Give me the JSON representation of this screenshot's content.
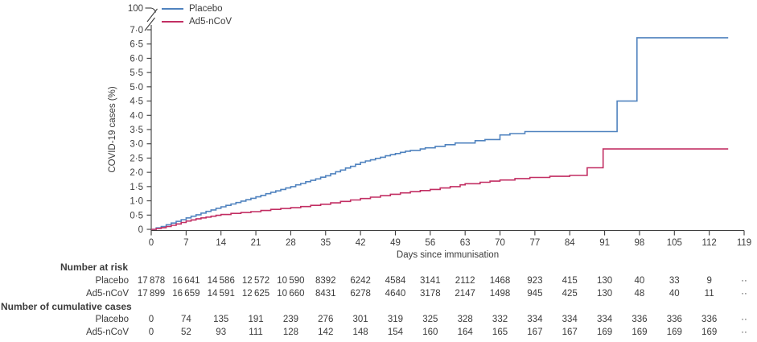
{
  "colors": {
    "placebo_blue": "#5083bf",
    "ad5_red": "#c22f63",
    "axis": "#3d3d3d",
    "text": "#3b3b3b"
  },
  "legend": {
    "items": [
      {
        "label": "Placebo"
      },
      {
        "label": "Ad5-nCoV"
      }
    ]
  },
  "chart_data": {
    "type": "line",
    "subtype": "kaplan-meier-cumulative-incidence-step",
    "title": "",
    "xlabel": "Days since immunisation",
    "ylabel": "COVID-19 cases (%)",
    "x_ticks": [
      0,
      7,
      14,
      21,
      28,
      35,
      42,
      49,
      56,
      63,
      70,
      77,
      84,
      91,
      98,
      105,
      112,
      119
    ],
    "y_tick_labels": [
      "0",
      "0·5",
      "1·0",
      "1·5",
      "2·0",
      "2·5",
      "3·0",
      "3·5",
      "4·0",
      "4·5",
      "5·0",
      "5·5",
      "6·0",
      "6·5",
      "7·0"
    ],
    "y_tick_values": [
      0,
      0.5,
      1,
      1.5,
      2,
      2.5,
      3,
      3.5,
      4,
      4.5,
      5,
      5.5,
      6,
      6.5,
      7
    ],
    "y_axis_break_top_label": "100",
    "xlim": [
      0,
      119
    ],
    "ylim": [
      0,
      7
    ],
    "grid": false,
    "legend_position": "top-left",
    "end_day": 115.8,
    "series": [
      {
        "name": "Placebo",
        "color": "#5083bf",
        "steps": [
          [
            0,
            0
          ],
          [
            1,
            0.05
          ],
          [
            2,
            0.1
          ],
          [
            3,
            0.16
          ],
          [
            4,
            0.22
          ],
          [
            5,
            0.28
          ],
          [
            6,
            0.34
          ],
          [
            7,
            0.4
          ],
          [
            8,
            0.46
          ],
          [
            9,
            0.51
          ],
          [
            10,
            0.57
          ],
          [
            11,
            0.63
          ],
          [
            12,
            0.68
          ],
          [
            13,
            0.74
          ],
          [
            14,
            0.79
          ],
          [
            15,
            0.84
          ],
          [
            16,
            0.89
          ],
          [
            17,
            0.94
          ],
          [
            18,
            0.99
          ],
          [
            19,
            1.04
          ],
          [
            20,
            1.09
          ],
          [
            21,
            1.14
          ],
          [
            22,
            1.19
          ],
          [
            23,
            1.25
          ],
          [
            24,
            1.3
          ],
          [
            25,
            1.35
          ],
          [
            26,
            1.4
          ],
          [
            27,
            1.45
          ],
          [
            28,
            1.5
          ],
          [
            29,
            1.56
          ],
          [
            30,
            1.61
          ],
          [
            31,
            1.67
          ],
          [
            32,
            1.72
          ],
          [
            33,
            1.77
          ],
          [
            34,
            1.83
          ],
          [
            35,
            1.88
          ],
          [
            36,
            1.95
          ],
          [
            37,
            2.02
          ],
          [
            38,
            2.08
          ],
          [
            39,
            2.15
          ],
          [
            40,
            2.21
          ],
          [
            41,
            2.28
          ],
          [
            42,
            2.35
          ],
          [
            43,
            2.4
          ],
          [
            44,
            2.44
          ],
          [
            45,
            2.49
          ],
          [
            46,
            2.53
          ],
          [
            47,
            2.58
          ],
          [
            48,
            2.62
          ],
          [
            49,
            2.66
          ],
          [
            50,
            2.7
          ],
          [
            51,
            2.74
          ],
          [
            52,
            2.77
          ],
          [
            54,
            2.82
          ],
          [
            55,
            2.86
          ],
          [
            57,
            2.91
          ],
          [
            59,
            2.97
          ],
          [
            61,
            3.03
          ],
          [
            65,
            3.11
          ],
          [
            67,
            3.15
          ],
          [
            70,
            3.31
          ],
          [
            72,
            3.36
          ],
          [
            75,
            3.43
          ],
          [
            93.5,
            4.5
          ],
          [
            97.5,
            6.72
          ]
        ]
      },
      {
        "name": "Ad5-nCoV",
        "color": "#c22f63",
        "steps": [
          [
            0,
            0
          ],
          [
            1,
            0.03
          ],
          [
            2,
            0.06
          ],
          [
            3,
            0.1
          ],
          [
            4,
            0.14
          ],
          [
            5,
            0.19
          ],
          [
            6,
            0.24
          ],
          [
            7,
            0.29
          ],
          [
            8,
            0.33
          ],
          [
            9,
            0.37
          ],
          [
            10,
            0.4
          ],
          [
            11,
            0.43
          ],
          [
            12,
            0.46
          ],
          [
            13,
            0.49
          ],
          [
            14,
            0.52
          ],
          [
            16,
            0.56
          ],
          [
            18,
            0.59
          ],
          [
            20,
            0.62
          ],
          [
            22,
            0.66
          ],
          [
            24,
            0.7
          ],
          [
            26,
            0.73
          ],
          [
            28,
            0.76
          ],
          [
            30,
            0.8
          ],
          [
            32,
            0.84
          ],
          [
            34,
            0.88
          ],
          [
            36,
            0.93
          ],
          [
            38,
            0.98
          ],
          [
            40,
            1.03
          ],
          [
            42,
            1.08
          ],
          [
            44,
            1.13
          ],
          [
            46,
            1.18
          ],
          [
            48,
            1.23
          ],
          [
            50,
            1.28
          ],
          [
            52,
            1.32
          ],
          [
            54,
            1.36
          ],
          [
            56,
            1.4
          ],
          [
            58,
            1.45
          ],
          [
            60,
            1.5
          ],
          [
            62,
            1.56
          ],
          [
            63,
            1.6
          ],
          [
            66,
            1.65
          ],
          [
            68,
            1.69
          ],
          [
            70,
            1.73
          ],
          [
            73,
            1.78
          ],
          [
            76,
            1.82
          ],
          [
            80,
            1.86
          ],
          [
            84,
            1.89
          ],
          [
            87.5,
            2.16
          ],
          [
            90.7,
            2.82
          ]
        ]
      }
    ]
  },
  "tables": {
    "at_risk": {
      "header": "Number at risk",
      "rows": [
        {
          "label": "Placebo",
          "values": [
            "17 878",
            "16 641",
            "14 586",
            "12 572",
            "10 590",
            "8392",
            "6242",
            "4584",
            "3141",
            "2112",
            "1468",
            "923",
            "415",
            "130",
            "40",
            "33",
            "9",
            "··"
          ]
        },
        {
          "label": "Ad5-nCoV",
          "values": [
            "17 899",
            "16 659",
            "14 591",
            "12 625",
            "10 660",
            "8431",
            "6278",
            "4640",
            "3178",
            "2147",
            "1498",
            "945",
            "425",
            "130",
            "48",
            "40",
            "11",
            "··"
          ]
        }
      ]
    },
    "cumulative": {
      "header": "Number of cumulative cases",
      "rows": [
        {
          "label": "Placebo",
          "values": [
            "0",
            "74",
            "135",
            "191",
            "239",
            "276",
            "301",
            "319",
            "325",
            "328",
            "332",
            "334",
            "334",
            "334",
            "336",
            "336",
            "336",
            "··"
          ]
        },
        {
          "label": "Ad5-nCoV",
          "values": [
            "0",
            "52",
            "93",
            "111",
            "128",
            "142",
            "148",
            "154",
            "160",
            "164",
            "165",
            "167",
            "167",
            "169",
            "169",
            "169",
            "169",
            "··"
          ]
        }
      ]
    }
  }
}
